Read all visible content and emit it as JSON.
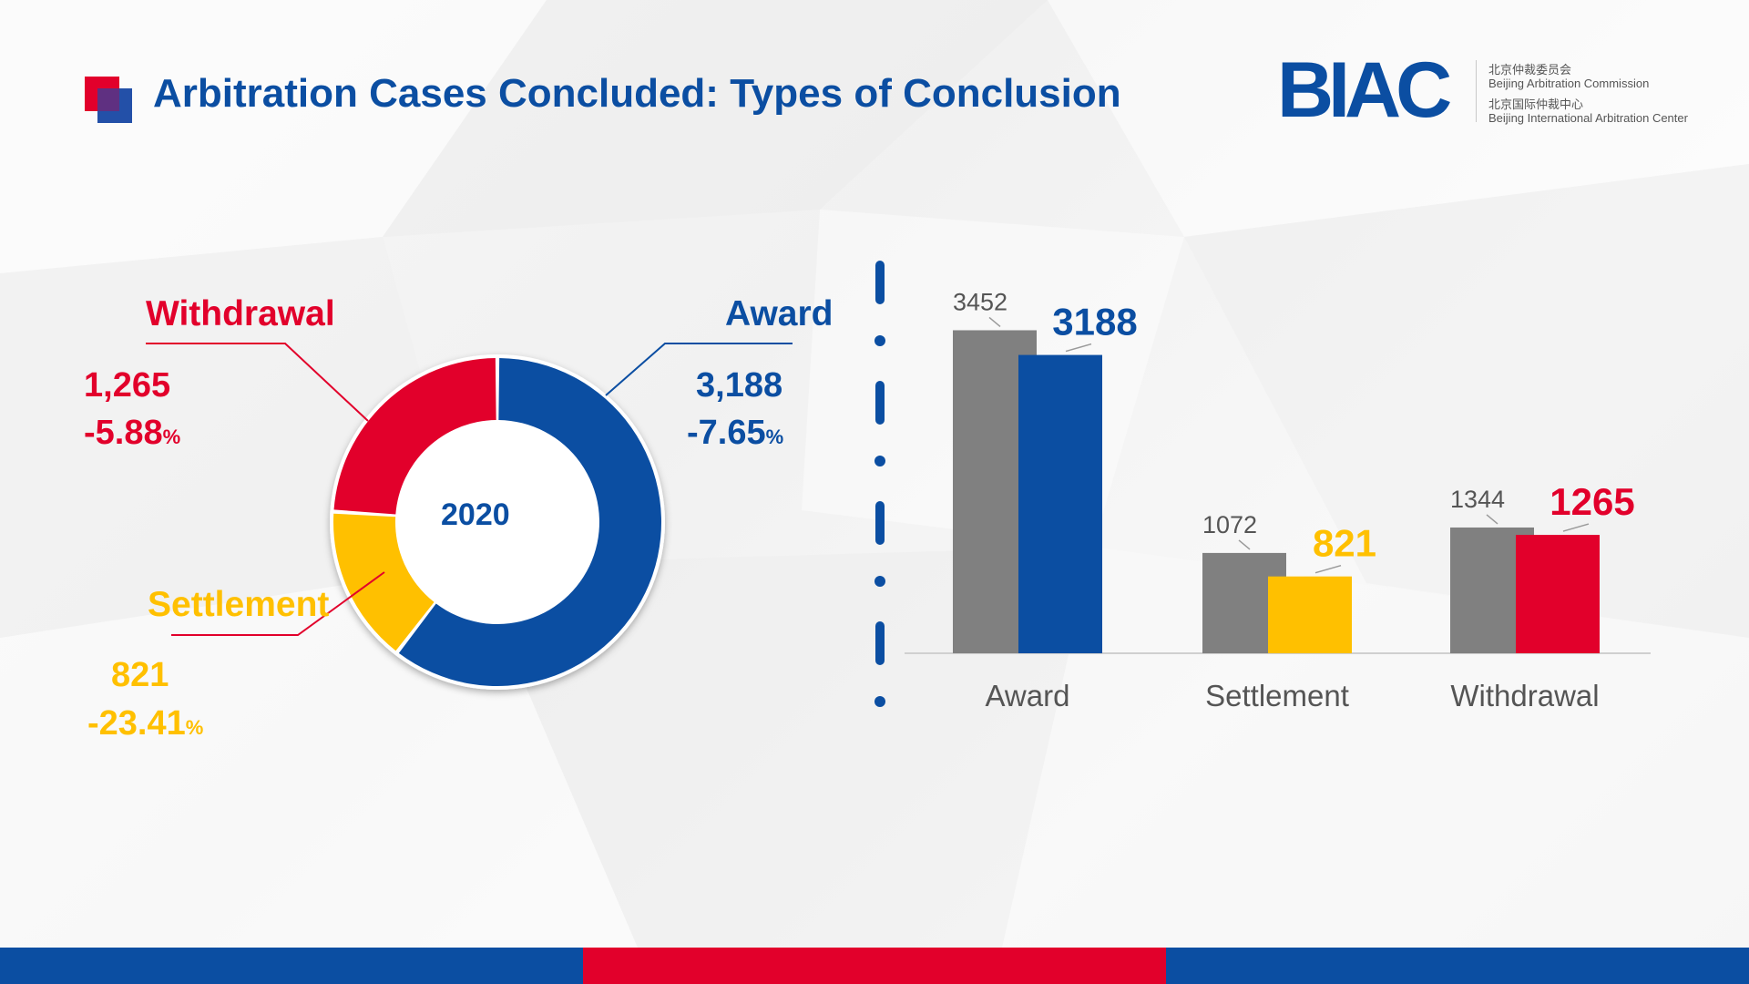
{
  "header": {
    "title": "Arbitration Cases Concluded: Types of Conclusion"
  },
  "logo": {
    "wordmark_left": "BI",
    "wordmark_right": "AC",
    "line1": "北京仲裁委员会",
    "line2": "Beijing Arbitration Commission",
    "line3": "北京国际仲裁中心",
    "line4": "Beijing International Arbitration Center"
  },
  "colors": {
    "award": "#0b4ea2",
    "settlement": "#ffc000",
    "withdrawal": "#e2002b",
    "previous_year": "#808080"
  },
  "donut": {
    "center_label": "2020",
    "award": {
      "label": "Award",
      "value_text": "3,188",
      "change": "-7.65",
      "pct_sign": "%"
    },
    "withdrawal": {
      "label": "Withdrawal",
      "value_text": "1,265",
      "change": "-5.88",
      "pct_sign": "%"
    },
    "settlement": {
      "label": "Settlement",
      "value_text": "821",
      "change": "-23.41",
      "pct_sign": "%"
    }
  },
  "chart_data": [
    {
      "type": "pie",
      "title": "",
      "center_label": "2020",
      "slices": [
        {
          "name": "Award",
          "value": 3188,
          "change_pct": -7.65,
          "color": "#0b4ea2"
        },
        {
          "name": "Settlement",
          "value": 821,
          "change_pct": -23.41,
          "color": "#ffc000"
        },
        {
          "name": "Withdrawal",
          "value": 1265,
          "change_pct": -5.88,
          "color": "#e2002b"
        }
      ]
    },
    {
      "type": "bar",
      "title": "",
      "categories": [
        "Award",
        "Settlement",
        "Withdrawal"
      ],
      "series": [
        {
          "values": [
            3452,
            1072,
            1344
          ],
          "color": "#808080"
        },
        {
          "values": [
            3188,
            821,
            1265
          ],
          "colors": [
            "#0b4ea2",
            "#ffc000",
            "#e2002b"
          ]
        }
      ],
      "data_labels": {
        "first": [
          "3452",
          "1072",
          "1344"
        ],
        "second": [
          "3188",
          "821",
          "1265"
        ]
      },
      "ylim": [
        0,
        3700
      ],
      "grid": false
    }
  ]
}
